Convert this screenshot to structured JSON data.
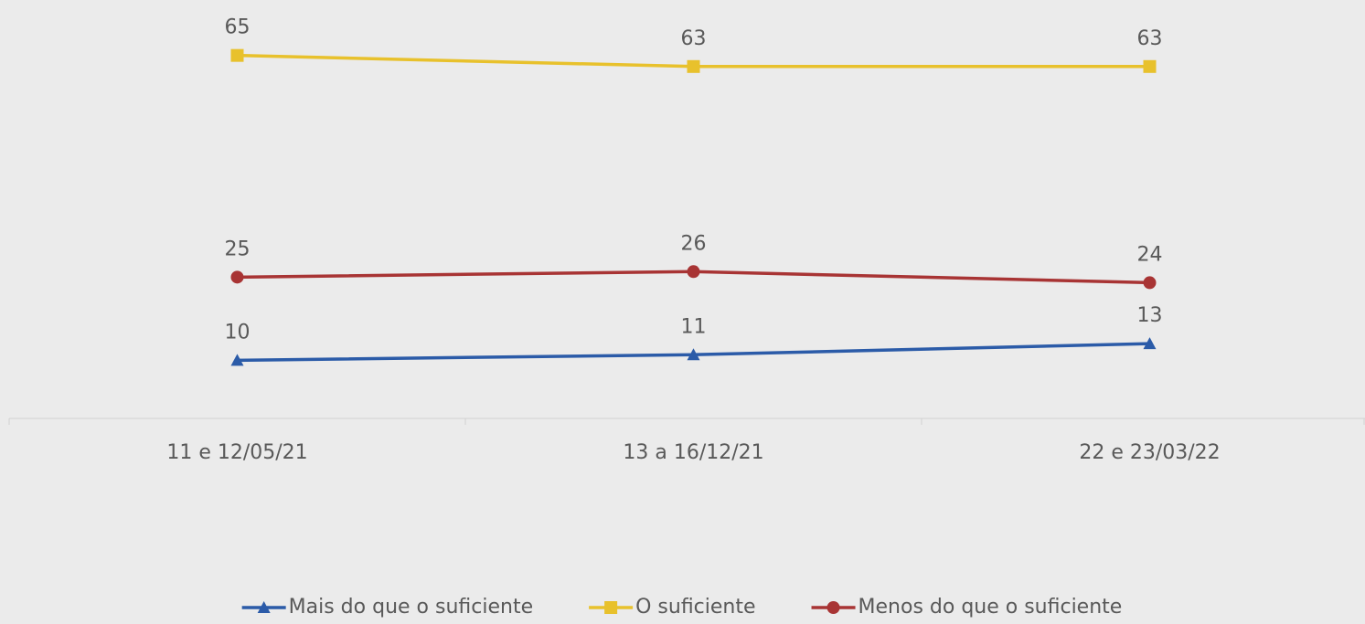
{
  "chart_data": {
    "type": "line",
    "categories": [
      "11 e 12/05/21",
      "13 a 16/12/21",
      "22 e 23/03/22"
    ],
    "series": [
      {
        "name": "Mais do que o suficiente",
        "color": "#2b5ba8",
        "marker": "triangle",
        "values": [
          10,
          11,
          13
        ]
      },
      {
        "name": "O suficiente",
        "color": "#e8c12c",
        "marker": "square",
        "values": [
          65,
          63,
          63
        ]
      },
      {
        "name": "Menos do que o suficiente",
        "color": "#a83434",
        "marker": "circle",
        "values": [
          25,
          26,
          24
        ]
      }
    ],
    "ylim": [
      0,
      75
    ],
    "legend": "bottom"
  }
}
